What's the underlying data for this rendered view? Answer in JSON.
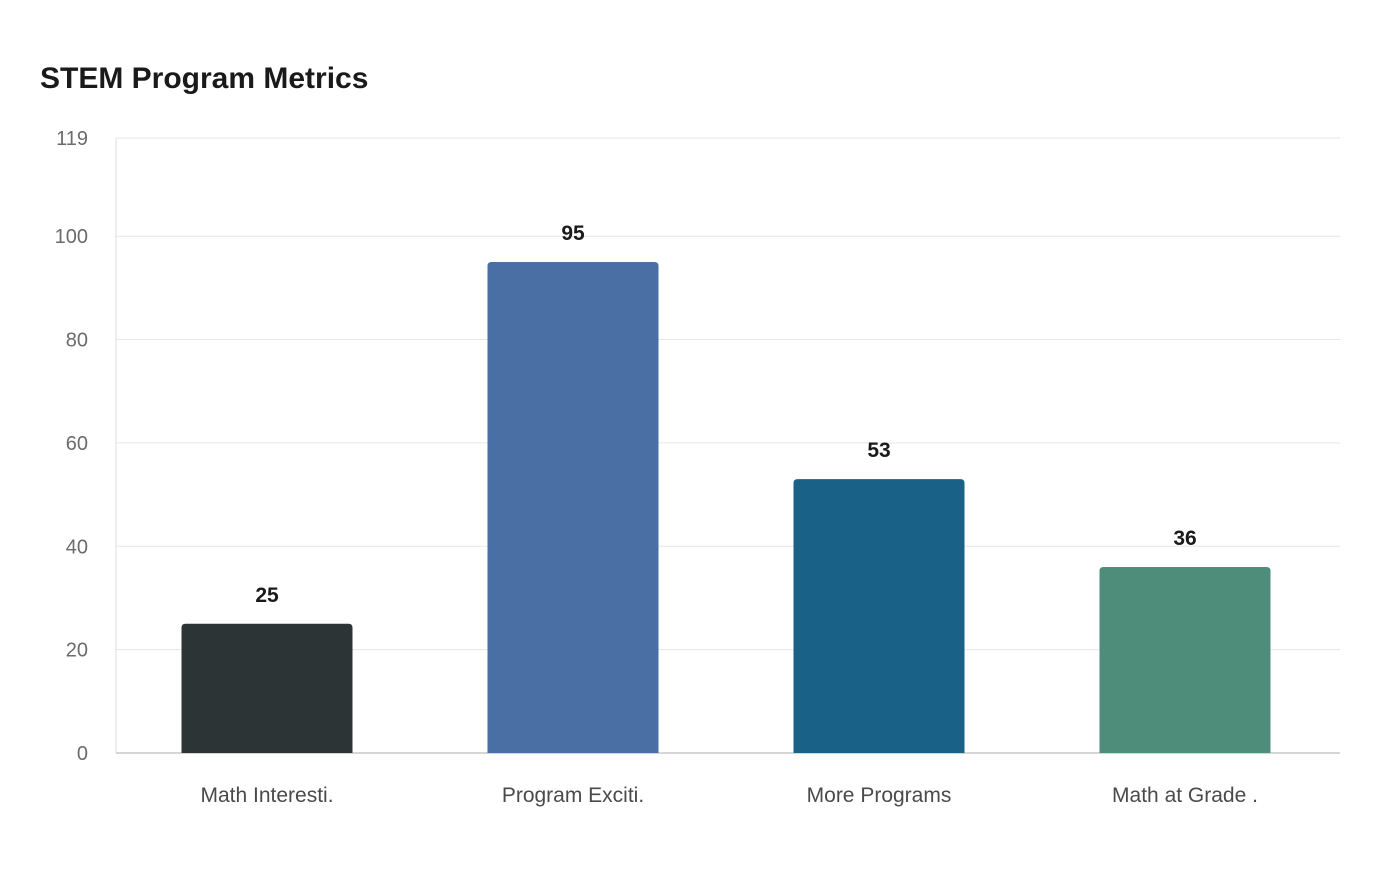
{
  "chart_data": {
    "type": "bar",
    "title": "STEM Program Metrics",
    "xlabel": "",
    "ylabel": "",
    "categories": [
      "Math Interesti.",
      "Program Exciti.",
      "More Programs",
      "Math at Grade ."
    ],
    "values": [
      25,
      95,
      53,
      36
    ],
    "colors": [
      "#2d3436",
      "#4a6fa5",
      "#1a6187",
      "#4e8d7a"
    ],
    "ylim": [
      0,
      119
    ],
    "yticks": [
      0,
      20,
      40,
      60,
      80,
      100,
      119
    ],
    "grid": true,
    "legend": "none"
  }
}
